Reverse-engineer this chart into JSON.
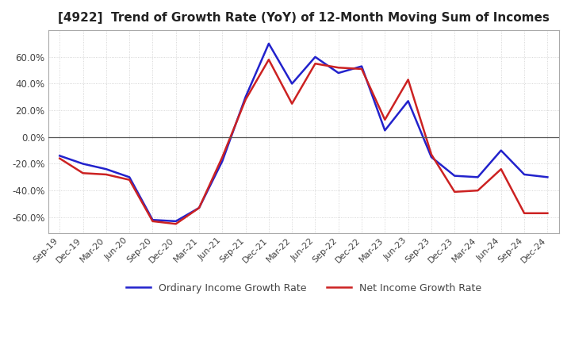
{
  "title": "[4922]  Trend of Growth Rate (YoY) of 12-Month Moving Sum of Incomes",
  "title_fontsize": 11,
  "ylim": [
    -0.72,
    0.8
  ],
  "yticks": [
    -0.6,
    -0.4,
    -0.2,
    0.0,
    0.2,
    0.4,
    0.6
  ],
  "ytick_labels": [
    "-60.0%",
    "-40.0%",
    "-20.0%",
    "0.0%",
    "20.0%",
    "40.0%",
    "60.0%"
  ],
  "legend_labels": [
    "Ordinary Income Growth Rate",
    "Net Income Growth Rate"
  ],
  "line_colors": [
    "#2222cc",
    "#cc2222"
  ],
  "line_width": 1.8,
  "x_labels": [
    "Sep-19",
    "Dec-19",
    "Mar-20",
    "Jun-20",
    "Sep-20",
    "Dec-20",
    "Mar-21",
    "Jun-21",
    "Sep-21",
    "Dec-21",
    "Mar-22",
    "Jun-22",
    "Sep-22",
    "Dec-22",
    "Mar-23",
    "Jun-23",
    "Sep-23",
    "Dec-23",
    "Mar-24",
    "Jun-24",
    "Sep-24",
    "Dec-24"
  ],
  "ordinary_income": [
    -0.14,
    -0.2,
    -0.24,
    -0.3,
    -0.62,
    -0.63,
    -0.53,
    -0.18,
    0.3,
    0.7,
    0.4,
    0.6,
    0.48,
    0.53,
    0.05,
    0.27,
    -0.15,
    -0.29,
    -0.3,
    -0.1,
    -0.28,
    -0.3
  ],
  "net_income": [
    -0.16,
    -0.27,
    -0.28,
    -0.32,
    -0.63,
    -0.65,
    -0.53,
    -0.15,
    0.28,
    0.58,
    0.25,
    0.55,
    0.52,
    0.51,
    0.13,
    0.43,
    -0.13,
    -0.41,
    -0.4,
    -0.24,
    -0.57,
    -0.57
  ],
  "background_color": "#ffffff",
  "grid_color": "#cccccc"
}
